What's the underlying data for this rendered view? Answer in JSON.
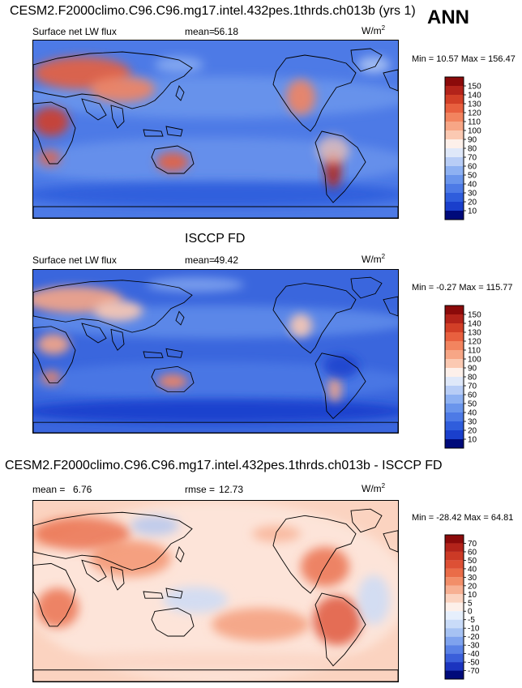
{
  "case_title": "CESM2.F2000climo.C96.C96.mg17.intel.432pes.1thrds.ch013b (yrs 1)",
  "season": "ANN",
  "obs_title": "ISCCP FD",
  "diff_title": "CESM2.F2000climo.C96.C96.mg17.intel.432pes.1thrds.ch013b - ISCCP FD",
  "colors": {
    "ocean_cool": "#2a5fd8",
    "land_warm": "#e8704a",
    "neutral": "#fdf1ea",
    "coast": "#000000"
  },
  "chart_data": [
    {
      "type": "heatmap",
      "name": "model",
      "variable": "Surface net LW flux",
      "mean_label": "mean=",
      "mean": "56.18",
      "units": "W/m",
      "units_exp": "2",
      "min_max_text": "Min =  10.57 Max = 156.47",
      "min": 10.57,
      "max": 156.47,
      "colorbar_levels": [
        "150",
        "140",
        "130",
        "120",
        "110",
        "100",
        "90",
        "80",
        "70",
        "60",
        "50",
        "40",
        "30",
        "20",
        "10"
      ],
      "colorbar_colors": [
        "#8b0a0a",
        "#b3231a",
        "#d23f27",
        "#e8603f",
        "#f2845f",
        "#f7a686",
        "#fbc9b2",
        "#fdf0ea",
        "#dfe8f9",
        "#b8cdf6",
        "#8eb1f2",
        "#6a95ec",
        "#4d7ae6",
        "#2f5ddc",
        "#1a3fcc",
        "#000a7a"
      ]
    },
    {
      "type": "heatmap",
      "name": "obs",
      "variable": "Surface net LW flux",
      "mean_label": "mean=",
      "mean": "49.42",
      "units": "W/m",
      "units_exp": "2",
      "min_max_text": "Min =  -0.27 Max = 115.77",
      "min": -0.27,
      "max": 115.77,
      "colorbar_levels": [
        "150",
        "140",
        "130",
        "120",
        "110",
        "100",
        "90",
        "80",
        "70",
        "60",
        "50",
        "40",
        "30",
        "20",
        "10"
      ],
      "colorbar_colors": [
        "#8b0a0a",
        "#b3231a",
        "#d23f27",
        "#e8603f",
        "#f2845f",
        "#f7a686",
        "#fbc9b2",
        "#fdf0ea",
        "#dfe8f9",
        "#b8cdf6",
        "#8eb1f2",
        "#6a95ec",
        "#4d7ae6",
        "#2f5ddc",
        "#1a3fcc",
        "#000a7a"
      ]
    },
    {
      "type": "heatmap",
      "name": "diff",
      "mean_label": "mean =",
      "mean": "6.76",
      "rmse_label": "rmse =",
      "rmse": "12.73",
      "units": "W/m",
      "units_exp": "2",
      "min_max_text": "Min = -28.42 Max =  64.81",
      "min": -28.42,
      "max": 64.81,
      "colorbar_levels": [
        "70",
        "60",
        "50",
        "40",
        "30",
        "20",
        "10",
        "5",
        "0",
        "-5",
        "-10",
        "-20",
        "-30",
        "-40",
        "-50",
        "-70"
      ],
      "colorbar_colors": [
        "#8b0a0a",
        "#b3231a",
        "#cc3a26",
        "#dd5035",
        "#ea6c48",
        "#f28e69",
        "#f7b093",
        "#fbd3c0",
        "#fdf0ea",
        "#e6effc",
        "#c9dbf8",
        "#a6c2f3",
        "#7fa3ee",
        "#5a82e6",
        "#3a5fda",
        "#1b34bf",
        "#000a7a"
      ]
    }
  ]
}
